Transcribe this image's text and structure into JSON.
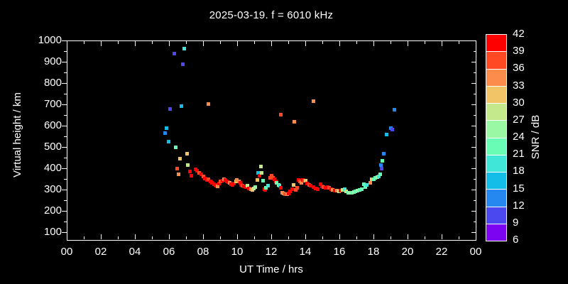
{
  "title": "2025-03-19. f = 6010 kHz",
  "colors": {
    "background": "#000000",
    "foreground": "#ffffff"
  },
  "chart_data": {
    "type": "scatter",
    "title": "2025-03-19. f = 6010 kHz",
    "xlabel": "UT Time / hrs",
    "ylabel": "Virtual height / km",
    "grid": false,
    "xlim": [
      0,
      24
    ],
    "ylim": [
      66.7,
      1000
    ],
    "x_major_tick_values": [
      0,
      2,
      4,
      6,
      8,
      10,
      12,
      14,
      16,
      18,
      20,
      22,
      24
    ],
    "x_major_tick_labels": [
      "00",
      "02",
      "04",
      "06",
      "08",
      "10",
      "12",
      "14",
      "16",
      "18",
      "20",
      "22",
      "00"
    ],
    "x_minor_tick_values": [
      1,
      3,
      5,
      7,
      9,
      11,
      13,
      15,
      17,
      19,
      21,
      23
    ],
    "y_major_tick_values": [
      100,
      200,
      300,
      400,
      500,
      600,
      700,
      800,
      900,
      1000
    ],
    "y_minor_tick_values": [
      150,
      250,
      350,
      450,
      550,
      650,
      750,
      850,
      950
    ],
    "colorbar": {
      "label": "SNR / dB",
      "min": 6,
      "max": 42,
      "tick_values": [
        6,
        9,
        12,
        15,
        18,
        21,
        24,
        27,
        30,
        33,
        36,
        39,
        42
      ],
      "segment_colors_low_to_high": [
        "#7c04f0",
        "#4c48f0",
        "#2488f0",
        "#14bce8",
        "#40e6d8",
        "#68fcb4",
        "#9af8a4",
        "#c4e88c",
        "#f1c468",
        "#fc8c4c",
        "#ff4824",
        "#ff0000"
      ]
    },
    "points_format": [
      "ut_hours",
      "virtual_height_km",
      "snr_db"
    ],
    "points": [
      [
        5.75,
        567,
        13
      ],
      [
        5.83,
        590,
        16
      ],
      [
        5.96,
        527,
        16
      ],
      [
        6.03,
        680,
        10
      ],
      [
        6.3,
        940,
        10
      ],
      [
        6.7,
        693,
        16
      ],
      [
        6.78,
        890,
        10
      ],
      [
        6.86,
        963,
        19
      ],
      [
        6.38,
        500,
        22
      ],
      [
        6.46,
        400,
        37
      ],
      [
        6.54,
        373,
        34
      ],
      [
        6.63,
        447,
        31
      ],
      [
        7.04,
        470,
        31
      ],
      [
        7.08,
        417,
        28
      ],
      [
        7.2,
        387,
        40
      ],
      [
        7.29,
        367,
        40
      ],
      [
        7.54,
        397,
        40
      ],
      [
        7.63,
        390,
        40
      ],
      [
        7.75,
        380,
        37
      ],
      [
        7.88,
        373,
        40
      ],
      [
        8.0,
        363,
        37
      ],
      [
        8.1,
        355,
        40
      ],
      [
        8.2,
        347,
        40
      ],
      [
        8.28,
        703,
        34
      ],
      [
        8.3,
        350,
        37
      ],
      [
        8.42,
        340,
        40
      ],
      [
        8.5,
        333,
        40
      ],
      [
        8.63,
        328,
        40
      ],
      [
        8.7,
        323,
        40
      ],
      [
        8.76,
        319,
        40
      ],
      [
        8.83,
        317,
        34
      ],
      [
        8.93,
        330,
        40
      ],
      [
        9.0,
        339,
        37
      ],
      [
        9.11,
        345,
        40
      ],
      [
        9.2,
        350,
        34
      ],
      [
        9.3,
        348,
        40
      ],
      [
        9.38,
        341,
        40
      ],
      [
        9.44,
        336,
        40
      ],
      [
        9.53,
        332,
        34
      ],
      [
        9.63,
        327,
        40
      ],
      [
        9.72,
        323,
        40
      ],
      [
        9.8,
        330,
        40
      ],
      [
        9.9,
        339,
        31
      ],
      [
        9.97,
        347,
        34
      ],
      [
        10.08,
        341,
        34
      ],
      [
        10.15,
        332,
        40
      ],
      [
        10.22,
        325,
        40
      ],
      [
        10.3,
        321,
        37
      ],
      [
        10.39,
        317,
        40
      ],
      [
        10.49,
        312,
        40
      ],
      [
        10.57,
        319,
        28
      ],
      [
        10.67,
        308,
        40
      ],
      [
        10.78,
        303,
        34
      ],
      [
        10.88,
        300,
        31
      ],
      [
        10.97,
        308,
        28
      ],
      [
        11.05,
        314,
        25
      ],
      [
        11.15,
        348,
        31
      ],
      [
        11.22,
        381,
        16
      ],
      [
        11.3,
        366,
        40
      ],
      [
        11.37,
        409,
        28
      ],
      [
        11.43,
        379,
        28
      ],
      [
        11.5,
        343,
        22
      ],
      [
        11.57,
        303,
        40
      ],
      [
        11.64,
        300,
        40
      ],
      [
        11.67,
        310,
        22
      ],
      [
        11.8,
        320,
        19
      ],
      [
        11.9,
        357,
        37
      ],
      [
        11.99,
        368,
        37
      ],
      [
        12.07,
        357,
        37
      ],
      [
        12.16,
        349,
        40
      ],
      [
        12.24,
        340,
        40
      ],
      [
        12.3,
        333,
        22
      ],
      [
        12.4,
        323,
        25
      ],
      [
        12.46,
        321,
        19
      ],
      [
        12.54,
        655,
        37
      ],
      [
        12.55,
        310,
        40
      ],
      [
        12.63,
        287,
        34
      ],
      [
        12.72,
        283,
        34
      ],
      [
        12.8,
        281,
        37
      ],
      [
        12.9,
        280,
        34
      ],
      [
        13.0,
        282,
        40
      ],
      [
        13.1,
        292,
        40
      ],
      [
        13.2,
        304,
        40
      ],
      [
        13.3,
        323,
        31
      ],
      [
        13.35,
        621,
        34
      ],
      [
        13.42,
        300,
        37
      ],
      [
        13.5,
        310,
        37
      ],
      [
        13.58,
        347,
        40
      ],
      [
        13.65,
        340,
        37
      ],
      [
        13.73,
        333,
        34
      ],
      [
        13.82,
        347,
        40
      ],
      [
        13.9,
        343,
        37
      ],
      [
        14.0,
        344,
        31
      ],
      [
        14.1,
        330,
        40
      ],
      [
        14.2,
        325,
        37
      ],
      [
        14.3,
        320,
        40
      ],
      [
        14.45,
        313,
        40
      ],
      [
        14.47,
        718,
        34
      ],
      [
        14.6,
        307,
        40
      ],
      [
        14.72,
        303,
        40
      ],
      [
        14.88,
        327,
        40
      ],
      [
        14.96,
        317,
        40
      ],
      [
        15.06,
        313,
        37
      ],
      [
        15.17,
        310,
        40
      ],
      [
        15.29,
        312,
        40
      ],
      [
        15.39,
        310,
        37
      ],
      [
        15.5,
        303,
        40
      ],
      [
        15.58,
        300,
        34
      ],
      [
        15.71,
        298,
        40
      ],
      [
        15.83,
        297,
        34
      ],
      [
        15.94,
        293,
        28
      ],
      [
        16.06,
        297,
        40
      ],
      [
        16.17,
        300,
        28
      ],
      [
        16.29,
        303,
        19
      ],
      [
        16.38,
        295,
        28
      ],
      [
        16.5,
        288,
        22
      ],
      [
        16.6,
        286,
        25
      ],
      [
        16.7,
        287,
        22
      ],
      [
        16.82,
        289,
        25
      ],
      [
        16.93,
        292,
        22
      ],
      [
        17.05,
        296,
        25
      ],
      [
        17.15,
        300,
        22
      ],
      [
        17.28,
        305,
        22
      ],
      [
        17.4,
        327,
        22
      ],
      [
        17.5,
        315,
        22
      ],
      [
        17.6,
        322,
        19
      ],
      [
        17.8,
        334,
        34
      ],
      [
        17.86,
        349,
        31
      ],
      [
        18.0,
        350,
        22
      ],
      [
        18.1,
        357,
        22
      ],
      [
        18.2,
        360,
        25
      ],
      [
        18.3,
        364,
        19
      ],
      [
        18.38,
        373,
        22
      ],
      [
        18.42,
        418,
        13
      ],
      [
        18.45,
        400,
        10
      ],
      [
        18.5,
        437,
        22
      ],
      [
        18.6,
        470,
        13
      ],
      [
        18.76,
        560,
        16
      ],
      [
        19.0,
        590,
        13
      ],
      [
        19.08,
        582,
        10
      ],
      [
        19.2,
        678,
        13
      ]
    ]
  }
}
